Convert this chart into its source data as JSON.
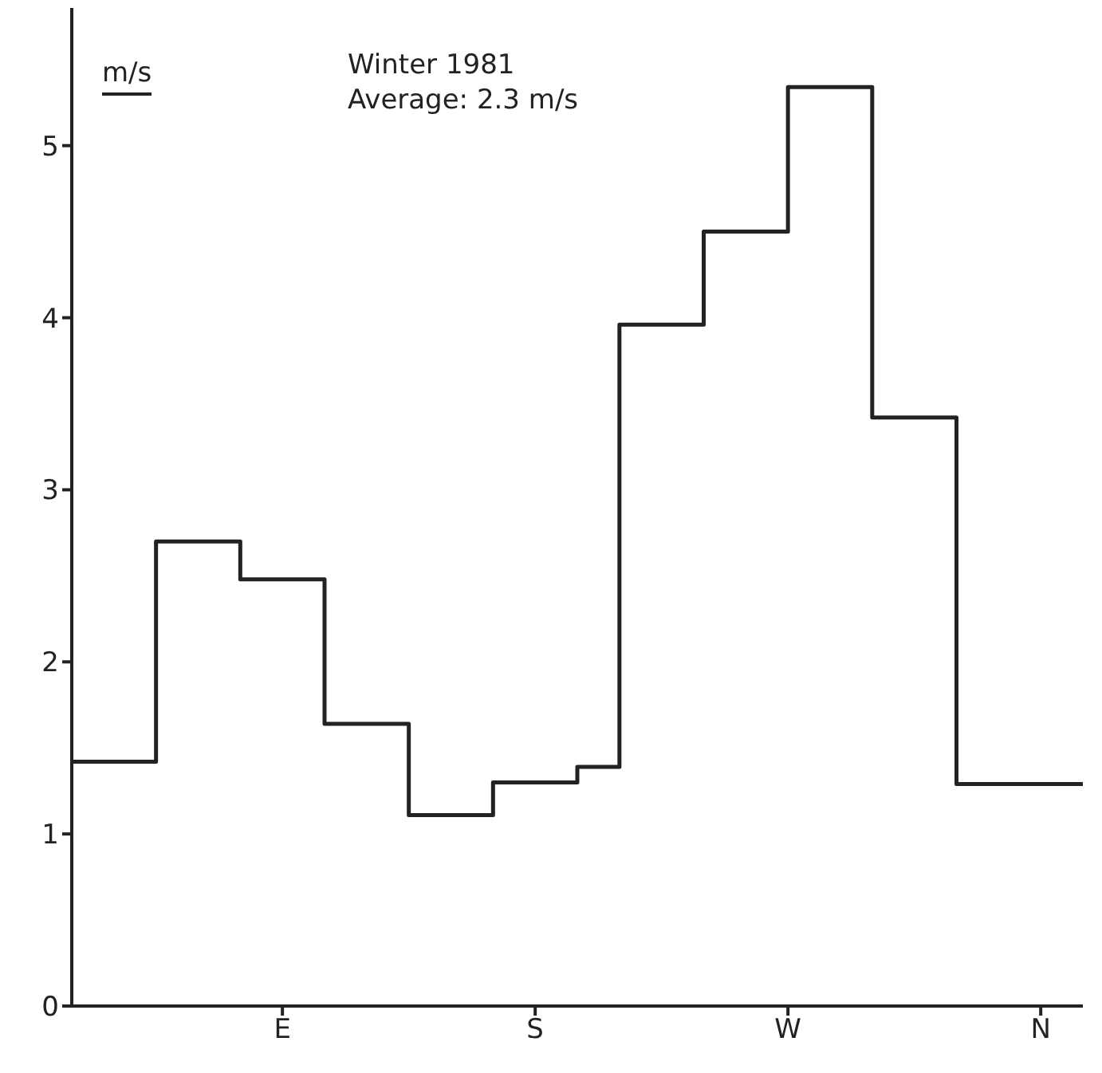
{
  "chart_data": {
    "type": "step",
    "title": "Winter 1981",
    "subtitle": "Average: 2.3 m/s",
    "ylabel": "m/s",
    "categories": [
      null,
      null,
      null,
      null,
      null,
      "E",
      null,
      null,
      null,
      null,
      null,
      "S",
      null,
      null,
      null,
      null,
      null,
      "W",
      null,
      null,
      null,
      null,
      null,
      "N",
      null
    ],
    "series": [
      {
        "color": "#222222",
        "values": [
          1.42,
          1.42,
          2.7,
          2.7,
          2.48,
          2.48,
          1.64,
          1.64,
          1.11,
          1.11,
          1.3,
          1.3,
          1.39,
          3.96,
          3.96,
          4.5,
          4.5,
          5.34,
          5.34,
          3.42,
          3.42,
          1.29,
          1.29,
          1.29,
          1.29
        ]
      }
    ],
    "ylim": [
      0,
      5.8
    ],
    "yticks": [
      0,
      1,
      2,
      3,
      4,
      5
    ],
    "marker": "none",
    "line_style": "solid"
  }
}
